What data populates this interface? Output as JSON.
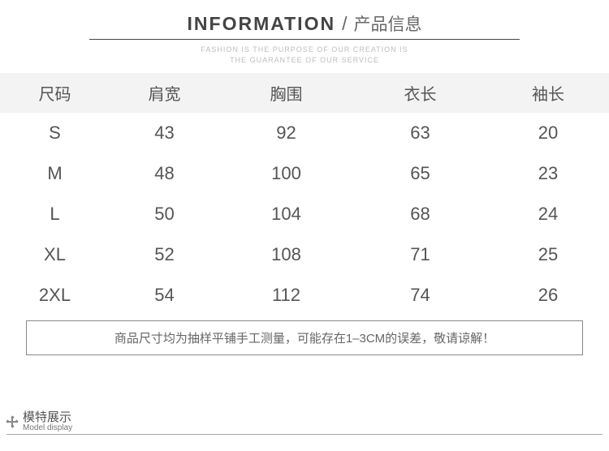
{
  "header": {
    "title_en": "INFORMATION",
    "slash": "/",
    "title_zh": "产品信息",
    "subtitle_line1": "FASHION IS THE PURPOSE OF OUR CREATION IS",
    "subtitle_line2": "THE GUARANTEE OF OUR SERVICE"
  },
  "table": {
    "columns": [
      "尺码",
      "肩宽",
      "胸围",
      "衣长",
      "袖长"
    ],
    "rows": [
      [
        "S",
        "43",
        "92",
        "63",
        "20"
      ],
      [
        "M",
        "48",
        "100",
        "65",
        "23"
      ],
      [
        "L",
        "50",
        "104",
        "68",
        "24"
      ],
      [
        "XL",
        "52",
        "108",
        "71",
        "25"
      ],
      [
        "2XL",
        "54",
        "112",
        "74",
        "26"
      ]
    ],
    "col_widths": [
      "18%",
      "18%",
      "22%",
      "22%",
      "20%"
    ],
    "header_bg": "#f3f3f3",
    "text_color": "#555555",
    "header_fontsize": 20,
    "cell_fontsize": 22
  },
  "note": "商品尺寸均为抽样平铺手工测量，可能存在1–3CM的误差，敬请谅解！",
  "footer": {
    "zh": "模特展示",
    "en": "Model display"
  }
}
